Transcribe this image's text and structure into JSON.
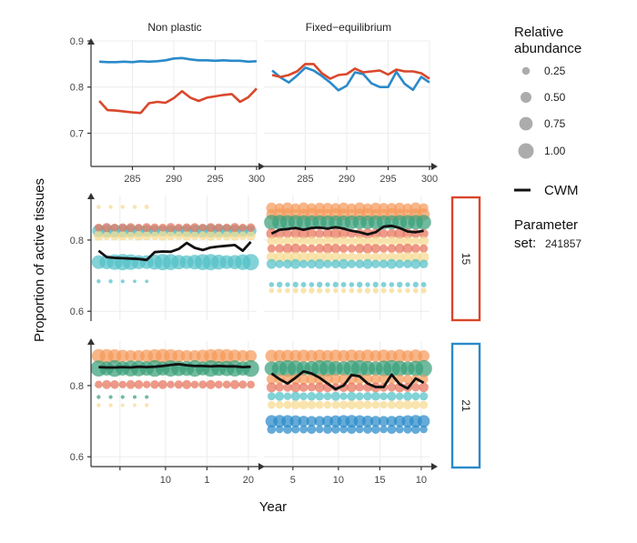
{
  "chart_data": {
    "type": "scatter",
    "ylabel": "Proportion of active tissues",
    "xlabel": "Year",
    "facet_columns": [
      "Non plastic",
      "Fixed−equilibrium"
    ],
    "facet_rows": [
      {
        "label": "15",
        "color": "#d9472b"
      },
      {
        "label": "21",
        "color": "#2a8ac9"
      }
    ],
    "panels": {
      "top": {
        "y_ticks": [
          "0.7",
          "0.8",
          "0.9"
        ],
        "ylim": [
          0.63,
          0.9
        ],
        "x_ticks": [
          "285",
          "290",
          "295",
          "300"
        ],
        "xlim": [
          280,
          300
        ],
        "series": [
          {
            "column": "Non plastic",
            "color": "#2a8ac9",
            "x": [
              281,
              282,
              283,
              284,
              285,
              286,
              287,
              288,
              289,
              290,
              291,
              292,
              293,
              294,
              295,
              296,
              297,
              298,
              299,
              300
            ],
            "y": [
              0.855,
              0.854,
              0.854,
              0.855,
              0.854,
              0.856,
              0.855,
              0.856,
              0.858,
              0.862,
              0.863,
              0.86,
              0.858,
              0.858,
              0.857,
              0.858,
              0.857,
              0.857,
              0.855,
              0.856
            ]
          },
          {
            "column": "Non plastic",
            "color": "#d9472b",
            "x": [
              281,
              282,
              283,
              284,
              285,
              286,
              287,
              288,
              289,
              290,
              291,
              292,
              293,
              294,
              295,
              296,
              297,
              298,
              299,
              300
            ],
            "y": [
              0.77,
              0.75,
              0.749,
              0.747,
              0.745,
              0.744,
              0.765,
              0.768,
              0.766,
              0.776,
              0.791,
              0.777,
              0.77,
              0.777,
              0.78,
              0.783,
              0.785,
              0.768,
              0.778,
              0.797
            ]
          },
          {
            "column": "Fixed−equilibrium",
            "color": "#2a8ac9",
            "x": [
              281,
              282,
              283,
              284,
              285,
              286,
              287,
              288,
              289,
              290,
              291,
              292,
              293,
              294,
              295,
              296,
              297,
              298,
              299,
              300
            ],
            "y": [
              0.836,
              0.821,
              0.81,
              0.825,
              0.842,
              0.836,
              0.824,
              0.81,
              0.793,
              0.803,
              0.832,
              0.828,
              0.808,
              0.8,
              0.8,
              0.833,
              0.807,
              0.794,
              0.822,
              0.81
            ]
          },
          {
            "column": "Fixed−equilibrium",
            "color": "#d9472b",
            "x": [
              281,
              282,
              283,
              284,
              285,
              286,
              287,
              288,
              289,
              290,
              291,
              292,
              293,
              294,
              295,
              296,
              297,
              298,
              299,
              300
            ],
            "y": [
              0.826,
              0.822,
              0.826,
              0.834,
              0.85,
              0.85,
              0.83,
              0.818,
              0.826,
              0.828,
              0.84,
              0.832,
              0.834,
              0.836,
              0.827,
              0.838,
              0.834,
              0.834,
              0.83,
              0.818
            ]
          }
        ]
      },
      "bottom": {
        "y_ticks": [
          "0.6",
          "0.8"
        ],
        "ylim": [
          0.575,
          0.925
        ],
        "x_ticks": {
          "Non plastic": [
            " ",
            "10",
            "1",
            "20"
          ],
          "Fixed−equilibrium": [
            "5",
            "10",
            "15",
            "10"
          ]
        },
        "xlim": [
          0,
          20
        ],
        "cwm": [
          {
            "row": "15",
            "column": "Non plastic",
            "x": [
              1,
              2,
              3,
              4,
              5,
              6,
              7,
              8,
              9,
              10,
              11,
              12,
              13,
              14,
              15,
              16,
              17,
              18,
              19,
              20
            ],
            "y": [
              0.77,
              0.752,
              0.75,
              0.749,
              0.748,
              0.747,
              0.744,
              0.766,
              0.768,
              0.767,
              0.775,
              0.792,
              0.778,
              0.772,
              0.779,
              0.782,
              0.784,
              0.786,
              0.77,
              0.795
            ]
          },
          {
            "row": "15",
            "column": "Fixed−equilibrium",
            "x": [
              1,
              2,
              3,
              4,
              5,
              6,
              7,
              8,
              9,
              10,
              11,
              12,
              13,
              14,
              15,
              16,
              17,
              18,
              19,
              20
            ],
            "y": [
              0.818,
              0.829,
              0.831,
              0.834,
              0.829,
              0.834,
              0.835,
              0.832,
              0.836,
              0.832,
              0.826,
              0.822,
              0.816,
              0.822,
              0.838,
              0.84,
              0.834,
              0.824,
              0.822,
              0.826
            ]
          },
          {
            "row": "21",
            "column": "Non plastic",
            "x": [
              1,
              2,
              3,
              4,
              5,
              6,
              7,
              8,
              9,
              10,
              11,
              12,
              13,
              14,
              15,
              16,
              17,
              18,
              19,
              20
            ],
            "y": [
              0.852,
              0.851,
              0.851,
              0.852,
              0.851,
              0.853,
              0.852,
              0.853,
              0.855,
              0.858,
              0.86,
              0.857,
              0.855,
              0.855,
              0.854,
              0.855,
              0.854,
              0.854,
              0.852,
              0.853
            ]
          },
          {
            "row": "21",
            "column": "Fixed−equilibrium",
            "x": [
              1,
              2,
              3,
              4,
              5,
              6,
              7,
              8,
              9,
              10,
              11,
              12,
              13,
              14,
              15,
              16,
              17,
              18,
              19,
              20
            ],
            "y": [
              0.834,
              0.818,
              0.806,
              0.822,
              0.84,
              0.834,
              0.822,
              0.806,
              0.79,
              0.8,
              0.83,
              0.826,
              0.806,
              0.796,
              0.796,
              0.831,
              0.804,
              0.792,
              0.82,
              0.808
            ]
          }
        ],
        "tissue_bands": [
          {
            "row": "15",
            "column": "Non plastic",
            "y": 0.738,
            "color": "#52c0c8",
            "abundance": 0.95
          },
          {
            "row": "15",
            "column": "Non plastic",
            "y": 0.826,
            "color": "#52c0c8",
            "abundance": 0.62
          },
          {
            "row": "15",
            "column": "Non plastic",
            "y": 0.812,
            "color": "#f7d98f",
            "abundance": 0.35
          },
          {
            "row": "15",
            "column": "Non plastic",
            "y": 0.835,
            "color": "#e8735c",
            "abundance": 0.3
          },
          {
            "row": "15",
            "column": "Non plastic",
            "y": 0.893,
            "color": "#f7d98f",
            "abundance": 0.08
          },
          {
            "row": "15",
            "column": "Non plastic",
            "y": 0.684,
            "color": "#52c0c8",
            "abundance": 0.06
          },
          {
            "row": "15",
            "column": "Fixed−equilibrium",
            "y": 0.89,
            "color": "#f59a5a",
            "abundance": 0.45
          },
          {
            "row": "15",
            "column": "Fixed−equilibrium",
            "y": 0.872,
            "color": "#f59a5a",
            "abundance": 0.55
          },
          {
            "row": "15",
            "column": "Fixed−equilibrium",
            "y": 0.85,
            "color": "#3aa07a",
            "abundance": 0.95
          },
          {
            "row": "15",
            "column": "Fixed−equilibrium",
            "y": 0.818,
            "color": "#e8735c",
            "abundance": 0.4
          },
          {
            "row": "15",
            "column": "Fixed−equilibrium",
            "y": 0.797,
            "color": "#f7d98f",
            "abundance": 0.35
          },
          {
            "row": "15",
            "column": "Fixed−equilibrium",
            "y": 0.776,
            "color": "#e8735c",
            "abundance": 0.35
          },
          {
            "row": "15",
            "column": "Fixed−equilibrium",
            "y": 0.752,
            "color": "#f7d98f",
            "abundance": 0.4
          },
          {
            "row": "15",
            "column": "Fixed−equilibrium",
            "y": 0.733,
            "color": "#52c0c8",
            "abundance": 0.35
          },
          {
            "row": "15",
            "column": "Fixed−equilibrium",
            "y": 0.675,
            "color": "#52c0c8",
            "abundance": 0.12
          },
          {
            "row": "15",
            "column": "Fixed−equilibrium",
            "y": 0.658,
            "color": "#f7d98f",
            "abundance": 0.12
          },
          {
            "row": "21",
            "column": "Non plastic",
            "y": 0.883,
            "color": "#f59a5a",
            "abundance": 0.7
          },
          {
            "row": "21",
            "column": "Non plastic",
            "y": 0.848,
            "color": "#3aa07a",
            "abundance": 1.0
          },
          {
            "row": "21",
            "column": "Non plastic",
            "y": 0.803,
            "color": "#e8735c",
            "abundance": 0.3
          },
          {
            "row": "21",
            "column": "Non plastic",
            "y": 0.768,
            "color": "#3aa07a",
            "abundance": 0.07
          },
          {
            "row": "21",
            "column": "Non plastic",
            "y": 0.745,
            "color": "#f7d98f",
            "abundance": 0.06
          },
          {
            "row": "21",
            "column": "Fixed−equilibrium",
            "y": 0.883,
            "color": "#f59a5a",
            "abundance": 0.65
          },
          {
            "row": "21",
            "column": "Fixed−equilibrium",
            "y": 0.848,
            "color": "#3aa07a",
            "abundance": 1.0
          },
          {
            "row": "21",
            "column": "Fixed−equilibrium",
            "y": 0.818,
            "color": "#f59a5a",
            "abundance": 0.4
          },
          {
            "row": "21",
            "column": "Fixed−equilibrium",
            "y": 0.795,
            "color": "#e8735c",
            "abundance": 0.35
          },
          {
            "row": "21",
            "column": "Fixed−equilibrium",
            "y": 0.77,
            "color": "#52c0c8",
            "abundance": 0.3
          },
          {
            "row": "21",
            "column": "Fixed−equilibrium",
            "y": 0.746,
            "color": "#f7d98f",
            "abundance": 0.3
          },
          {
            "row": "21",
            "column": "Fixed−equilibrium",
            "y": 0.7,
            "color": "#2a8ac9",
            "abundance": 0.55
          },
          {
            "row": "21",
            "column": "Fixed−equilibrium",
            "y": 0.677,
            "color": "#2a8ac9",
            "abundance": 0.3
          }
        ]
      }
    },
    "legend": {
      "size_title_line1": "Relative",
      "size_title_line2": "abundance",
      "size_labels": [
        "0.25",
        "0.50",
        "0.75",
        "1.00"
      ],
      "size_values": [
        0.25,
        0.5,
        0.75,
        1.0
      ],
      "cwm_label": "CWM",
      "parameter_title_line1": "Parameter",
      "parameter_title_prefix": "set:",
      "parameter_value": "241857"
    },
    "grid": true,
    "legend_position": "right"
  }
}
